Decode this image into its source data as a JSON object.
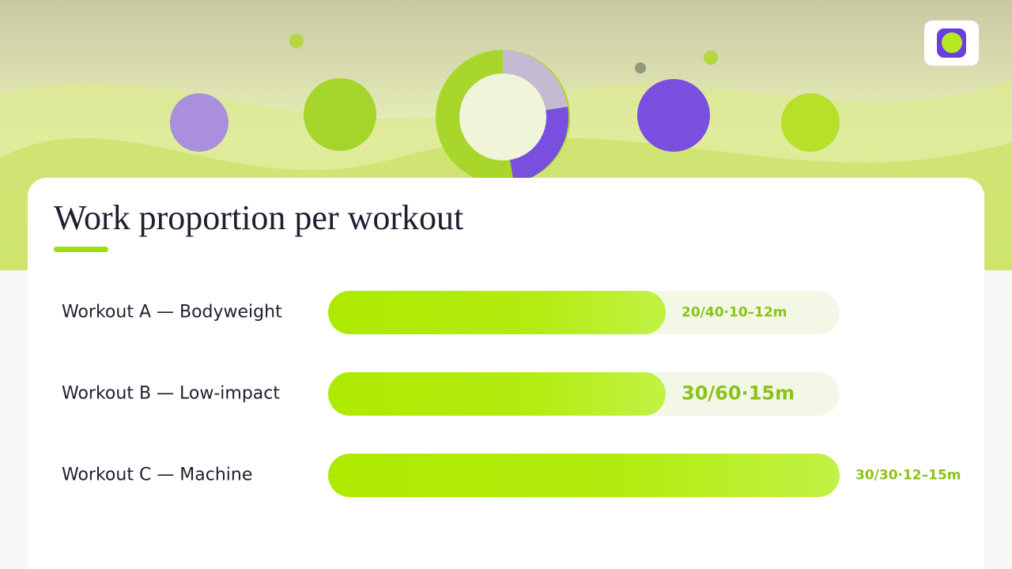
{
  "chart_data": {
    "type": "bar",
    "orientation": "horizontal",
    "title": "Work proportion per workout",
    "categories": [
      "Workout A — Bodyweight",
      "Workout B — Low-impact",
      "Workout C — Machine"
    ],
    "values": [
      0.66,
      0.66,
      1
    ],
    "details": [
      "20/40·10–12m",
      "30/60·15m",
      "30/30·12–15m"
    ],
    "xlim": [
      0,
      1
    ],
    "color": "#aeea00"
  }
}
